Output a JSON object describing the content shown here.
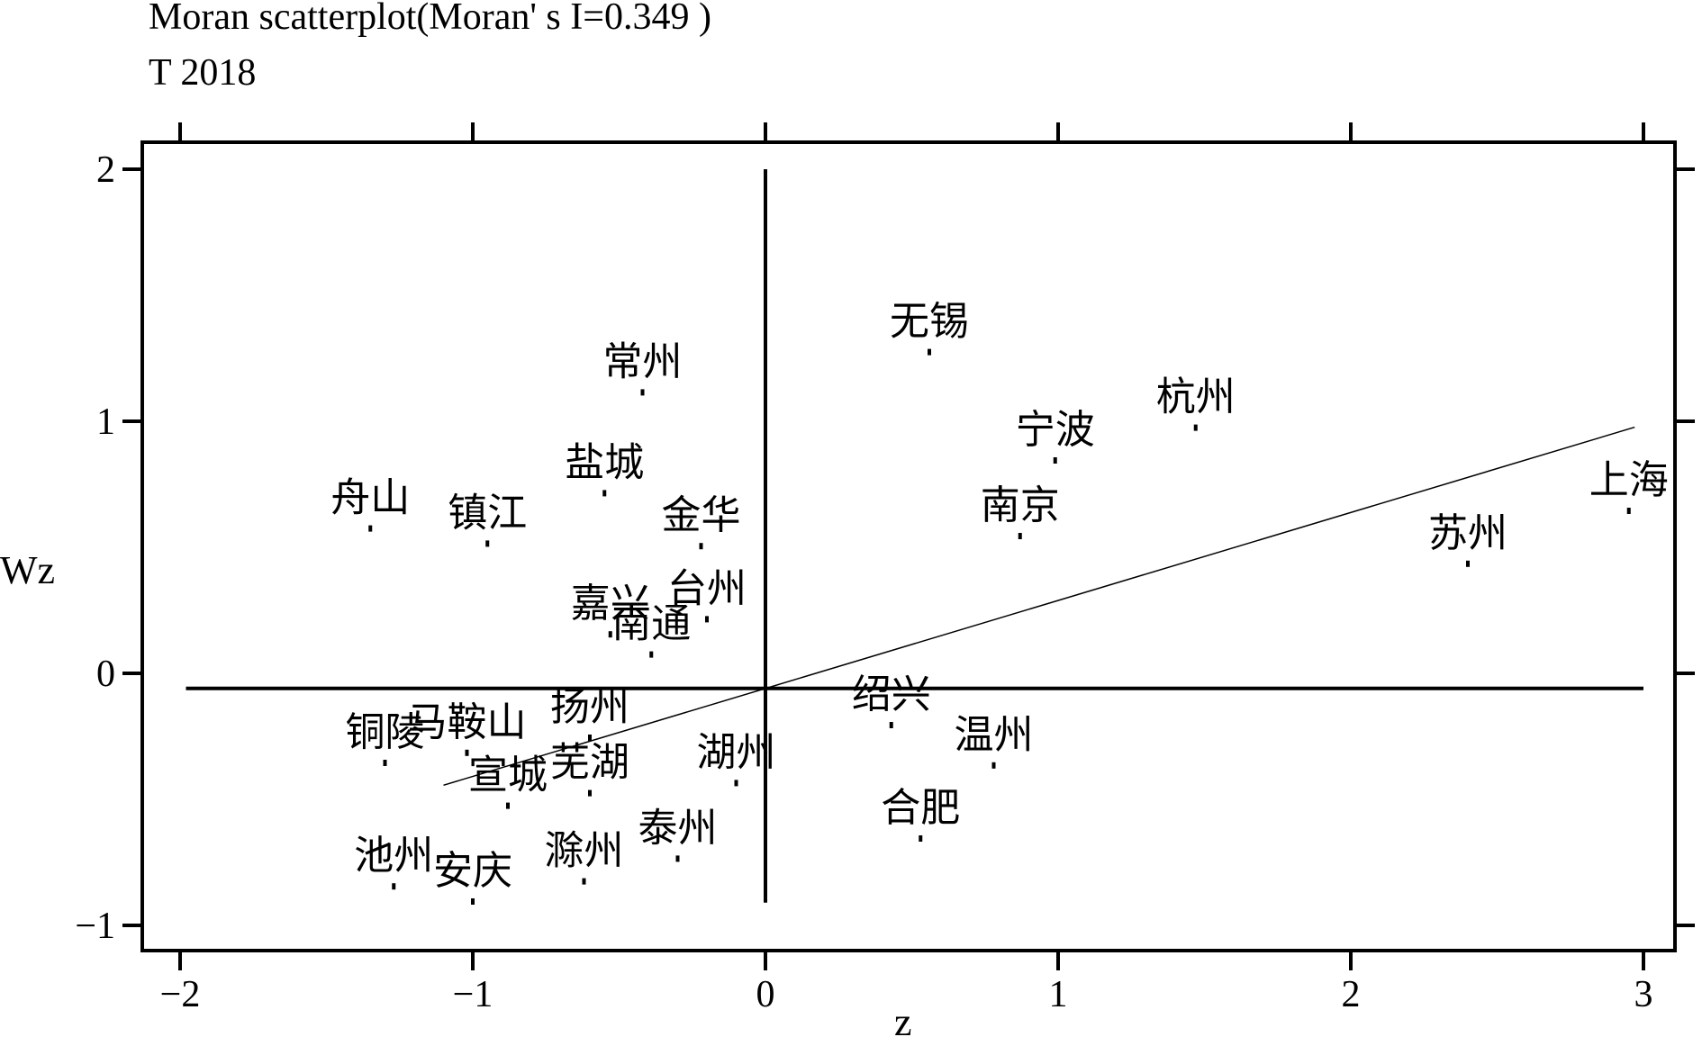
{
  "chart_data": {
    "type": "scatter",
    "title": "Moran scatterplot(Moran' s I=0.349 )",
    "subtitle": "T 2018",
    "xlabel": "z",
    "ylabel": "Wz",
    "xlim": [
      -2,
      3
    ],
    "ylim": [
      -1,
      2
    ],
    "xticks": [
      -2,
      -1,
      0,
      1,
      2,
      3
    ],
    "yticks": [
      -1,
      0,
      1,
      2
    ],
    "xtick_labels": [
      "−2",
      "−1",
      "0",
      "1",
      "2",
      "3"
    ],
    "ytick_labels": [
      "−1",
      "0",
      "1",
      "2"
    ],
    "ref_lines": {
      "x_mean": 0.0,
      "y_mean": -0.06
    },
    "fit_line": {
      "slope": 0.349,
      "x_start": -1.1,
      "x_end": 2.97
    },
    "points": [
      {
        "label": "无锡",
        "x": 0.56,
        "y": 1.28
      },
      {
        "label": "常州",
        "x": -0.42,
        "y": 1.12
      },
      {
        "label": "宁波",
        "x": 0.99,
        "y": 0.85
      },
      {
        "label": "杭州",
        "x": 1.47,
        "y": 0.98
      },
      {
        "label": "盐城",
        "x": -0.55,
        "y": 0.72
      },
      {
        "label": "舟山",
        "x": -1.35,
        "y": 0.58
      },
      {
        "label": "镇江",
        "x": -0.95,
        "y": 0.52
      },
      {
        "label": "金华",
        "x": -0.22,
        "y": 0.51
      },
      {
        "label": "南京",
        "x": 0.87,
        "y": 0.55
      },
      {
        "label": "上海",
        "x": 2.95,
        "y": 0.65
      },
      {
        "label": "苏州",
        "x": 2.4,
        "y": 0.44
      },
      {
        "label": "嘉兴",
        "x": -0.53,
        "y": 0.16
      },
      {
        "label": "台州",
        "x": -0.2,
        "y": 0.22
      },
      {
        "label": "南通",
        "x": -0.39,
        "y": 0.08
      },
      {
        "label": "马鞍山",
        "x": -1.02,
        "y": -0.31
      },
      {
        "label": "扬州",
        "x": -0.6,
        "y": -0.25
      },
      {
        "label": "铜陵",
        "x": -1.3,
        "y": -0.35
      },
      {
        "label": "绍兴",
        "x": 0.43,
        "y": -0.2
      },
      {
        "label": "温州",
        "x": 0.78,
        "y": -0.36
      },
      {
        "label": "芜湖",
        "x": -0.6,
        "y": -0.47
      },
      {
        "label": "湖州",
        "x": -0.1,
        "y": -0.43
      },
      {
        "label": "宣城",
        "x": -0.88,
        "y": -0.52
      },
      {
        "label": "合肥",
        "x": 0.53,
        "y": -0.65
      },
      {
        "label": "泰州",
        "x": -0.3,
        "y": -0.73
      },
      {
        "label": "池州",
        "x": -1.27,
        "y": -0.84
      },
      {
        "label": "安庆",
        "x": -1.0,
        "y": -0.9
      },
      {
        "label": "滁州",
        "x": -0.62,
        "y": -0.82
      }
    ],
    "grid": false,
    "colors": {
      "ink": "#000000",
      "background": "#ffffff"
    }
  }
}
